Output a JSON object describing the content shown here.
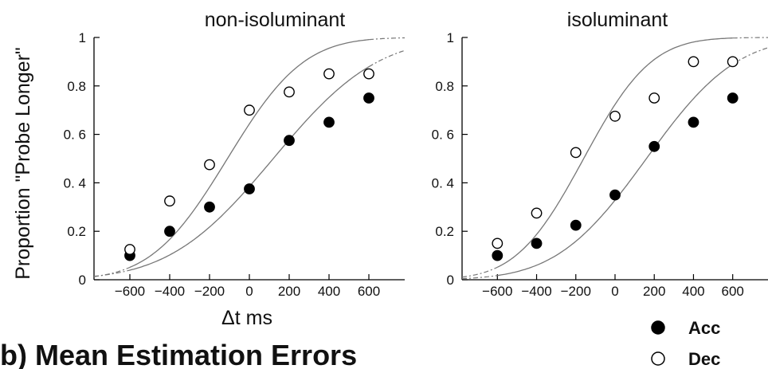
{
  "chart_data": [
    {
      "type": "scatter",
      "title": "non-isoluminant",
      "xlabel": "Δt ms",
      "ylabel": "Proportion \"Probe Longer\"",
      "xlim": [
        -780,
        780
      ],
      "ylim": [
        0,
        1
      ],
      "xticks": [
        -600,
        -400,
        -200,
        0,
        200,
        400,
        600
      ],
      "xtick_labels": [
        "−600",
        "−400",
        "−200",
        "0",
        "200",
        "400",
        "600"
      ],
      "yticks": [
        0,
        0.2,
        0.4,
        0.6,
        0.8,
        1
      ],
      "ytick_labels": [
        "0",
        "0.2",
        "0. 4",
        "0. 6",
        "0.8",
        "1"
      ],
      "grid": false,
      "series": [
        {
          "name": "Acc",
          "marker": "filled-circle",
          "x": [
            -600,
            -400,
            -200,
            0,
            200,
            400,
            600
          ],
          "y": [
            0.1,
            0.2,
            0.3,
            0.375,
            0.575,
            0.65,
            0.75
          ],
          "fit": {
            "mu": 120,
            "sigma": 410
          }
        },
        {
          "name": "Dec",
          "marker": "open-circle",
          "x": [
            -600,
            -400,
            -200,
            0,
            200,
            400,
            600
          ],
          "y": [
            0.125,
            0.325,
            0.475,
            0.7,
            0.775,
            0.85,
            0.85
          ],
          "fit": {
            "mu": -110,
            "sigma": 300
          }
        }
      ]
    },
    {
      "type": "scatter",
      "title": "isoluminant",
      "xlabel": "",
      "ylabel": "",
      "xlim": [
        -780,
        780
      ],
      "ylim": [
        0,
        1
      ],
      "xticks": [
        -600,
        -400,
        -200,
        0,
        200,
        400,
        600
      ],
      "xtick_labels": [
        "−600",
        "−400",
        "−200",
        "0",
        "200",
        "400",
        "600"
      ],
      "yticks": [
        0,
        0.2,
        0.4,
        0.6,
        0.8,
        1
      ],
      "ytick_labels": [
        "0",
        "0.2",
        "0. 4",
        "0. 6",
        "0.8",
        "1"
      ],
      "grid": false,
      "series": [
        {
          "name": "Acc",
          "marker": "filled-circle",
          "x": [
            -600,
            -400,
            -200,
            0,
            200,
            400,
            600
          ],
          "y": [
            0.1,
            0.15,
            0.225,
            0.35,
            0.55,
            0.65,
            0.75
          ],
          "fit": {
            "mu": 160,
            "sigma": 360
          }
        },
        {
          "name": "Dec",
          "marker": "open-circle",
          "x": [
            -600,
            -400,
            -200,
            0,
            200,
            400,
            600
          ],
          "y": [
            0.15,
            0.275,
            0.525,
            0.675,
            0.75,
            0.9,
            0.9
          ],
          "fit": {
            "mu": -160,
            "sigma": 270
          }
        }
      ]
    }
  ],
  "legend": {
    "placement": "bottom-right",
    "items": [
      {
        "label": "Acc",
        "marker": "filled-circle"
      },
      {
        "label": "Dec",
        "marker": "open-circle"
      }
    ]
  },
  "section_heading": "b) Mean Estimation Errors"
}
